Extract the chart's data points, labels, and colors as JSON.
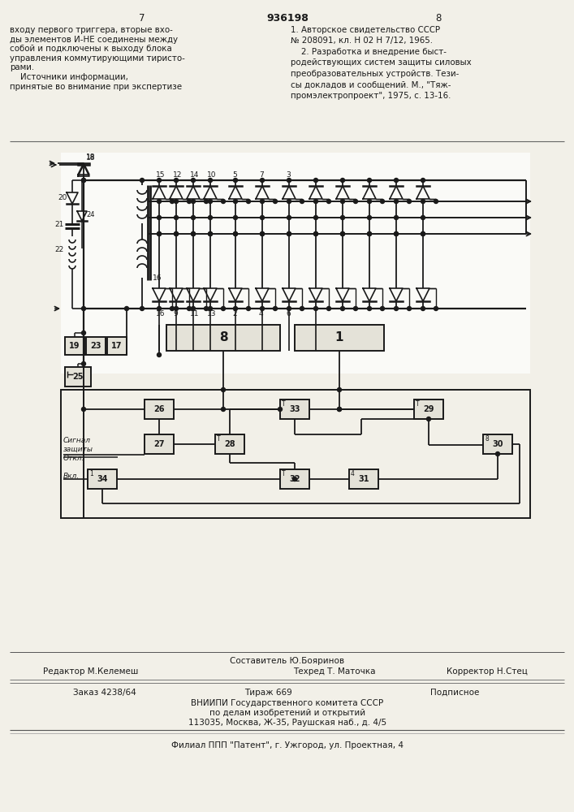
{
  "bg_color": "#f2f0e8",
  "lc": "#1a1a1a",
  "page_left": "7",
  "page_center": "936198",
  "page_right": "8",
  "top_left": "входу первого триггера, вторые вхо-\nды элементов И-НЕ соединены между\nсобой и подключены к выходу блока\nуправления коммутирующими тиристо-\nрами.\n    Источники информации,\nпринятые во внимание при экспертизе",
  "top_right_lines": [
    "1. Авторское свидетельство СССР",
    "№ 208091, кл. Н 02 Н 7/12, 1965.",
    "    2. Разработка и внедрение быст-",
    "родействующих систем защиты силовых",
    "преобразовательных устройств. Тези-",
    "сы докладов и сообщений. М., \"Тяж-",
    "промэлектропроект\", 1975, с. 13-16."
  ],
  "footer_composer": "Составитель Ю.Бояринов",
  "footer_editor": "Редактор М.Келемеш",
  "footer_techred": "Техред Т. Маточка",
  "footer_corrector": "Корректор Н.Стец",
  "footer_order": "Заказ 4238/64",
  "footer_tirazh": "Тираж 669",
  "footer_podp": "Подписное",
  "footer_vnipi": "ВНИИПИ Государственного комитета СССР",
  "footer_affairs": "по делам изобретений и открытий",
  "footer_address": "113035, Москва, Ж-35, Раушская наб., д. 4/5",
  "footer_filial": "Филиал ППП \"Патент\", г. Ужгород, ул. Проектная, 4"
}
